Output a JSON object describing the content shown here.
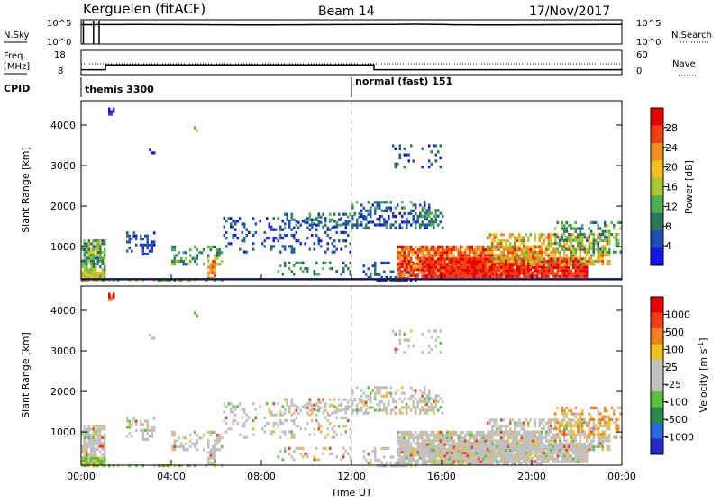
{
  "header": {
    "station": "Kerguelen (fitACF)",
    "beam": "Beam 14",
    "date": "17/Nov/2017"
  },
  "panels": {
    "nsky": {
      "label": "N.Sky",
      "left_ticks": [
        "10^5",
        "10^0"
      ],
      "right_ticks": [
        "10^5",
        "10^0"
      ],
      "right_label": "N.Search"
    },
    "freq": {
      "label_line1": "Freq.",
      "label_line2": "[MHz]",
      "left_ticks": [
        "18",
        "8"
      ],
      "right_ticks": [
        "60",
        "0"
      ],
      "right_label": "Nave"
    },
    "cpid": {
      "label": "CPID",
      "modes": [
        "themis 3300",
        "normal (fast) 151"
      ]
    }
  },
  "colors": {
    "power": [
      "#1515f0",
      "#1e4fb4",
      "#2a7a5a",
      "#4caf50",
      "#a8c832",
      "#f0c020",
      "#f09020",
      "#f04010",
      "#e80000"
    ],
    "velocity": [
      "#2828c8",
      "#2a6ad8",
      "#2a8c4a",
      "#5cc040",
      "#c0c0c0",
      "#c0c0c0",
      "#f0c020",
      "#f08020",
      "#f04010",
      "#e80000"
    ]
  },
  "chart_data": [
    {
      "type": "line",
      "title": "N.Sky",
      "x": [
        "00:00",
        "01:00",
        "02:00",
        "04:00",
        "08:00",
        "12:00",
        "14:00",
        "16:00",
        "20:00",
        "24:00"
      ],
      "series": [
        {
          "name": "N.Sky",
          "values": [
            5.0,
            4.9,
            4.9,
            4.9,
            4.9,
            4.9,
            5.0,
            4.9,
            4.9,
            4.9
          ]
        }
      ],
      "ylim": [
        0,
        5
      ]
    },
    {
      "type": "line",
      "title": "Freq.",
      "x": [
        "00:00",
        "01:05",
        "01:05",
        "13:00",
        "13:00",
        "24:00"
      ],
      "series": [
        {
          "name": "Freq.",
          "values": [
            10.0,
            10.0,
            12.0,
            12.0,
            10.0,
            10.0
          ]
        }
      ],
      "ylim": [
        8,
        18
      ]
    },
    {
      "type": "heatmap",
      "title": "Power [dB]",
      "ylabel": "Slant Range [km]",
      "xlabel": "Time UT",
      "x_ticks": [
        "00:00",
        "04:00",
        "08:00",
        "12:00",
        "16:00",
        "20:00",
        "00:00"
      ],
      "y_ticks": [
        "1000",
        "2000",
        "3000",
        "4000"
      ],
      "xlim": [
        0,
        24
      ],
      "ylim": [
        180,
        4600
      ],
      "colorbar": {
        "label": "Power [dB]",
        "ticks": [
          "28",
          "24",
          "20",
          "16",
          "12",
          "8",
          "4"
        ]
      }
    },
    {
      "type": "heatmap",
      "title": "Velocity [m s-1]",
      "ylabel": "Slant Range [km]",
      "xlabel": "Time UT",
      "x_ticks": [
        "00:00",
        "04:00",
        "08:00",
        "12:00",
        "16:00",
        "20:00",
        "00:00"
      ],
      "y_ticks": [
        "1000",
        "2000",
        "3000",
        "4000"
      ],
      "xlim": [
        0,
        24
      ],
      "ylim": [
        180,
        4600
      ],
      "colorbar": {
        "label": "Velocity [m s",
        "label_sup": "-1",
        "label_end": "]",
        "ticks": [
          "1000",
          "500",
          "100",
          "25",
          "-25",
          "-100",
          "-500",
          "-1000"
        ]
      }
    }
  ],
  "axes": {
    "x_ticks": [
      "00:00",
      "04:00",
      "08:00",
      "12:00",
      "16:00",
      "20:00",
      "00:00"
    ],
    "xlabel": "Time UT",
    "ylabel": "Slant Range [km]",
    "y_ticks": [
      "1000",
      "2000",
      "3000",
      "4000"
    ]
  }
}
